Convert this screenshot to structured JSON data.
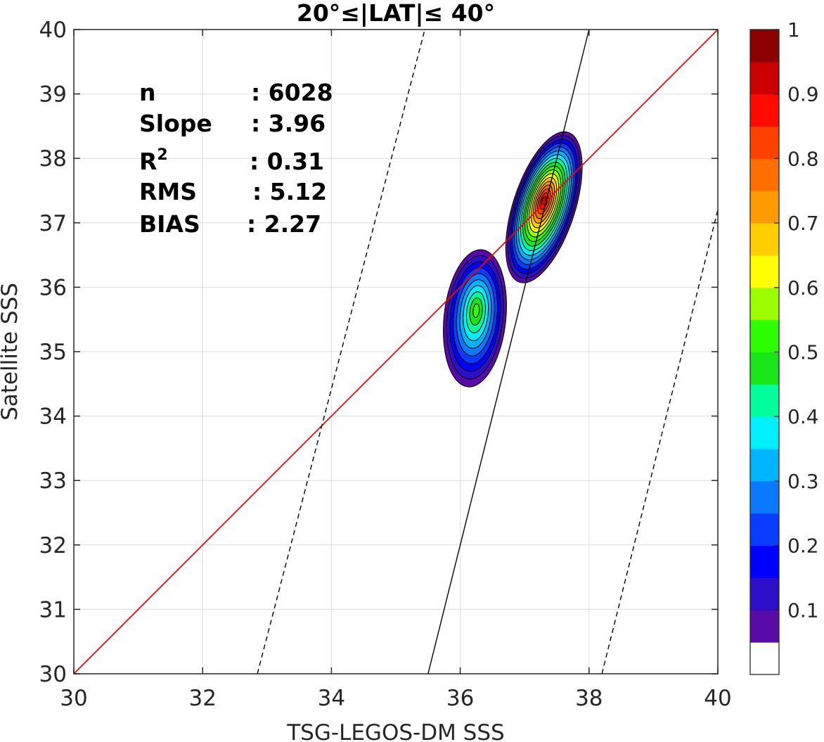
{
  "chart_data": {
    "type": "contour",
    "title": "20°≤|LAT|≤ 40°",
    "xlabel": "TSG-LEGOS-DM SSS",
    "ylabel": "Satellite SSS",
    "xlim": [
      30,
      40
    ],
    "ylim": [
      30,
      40
    ],
    "xticks": [
      "30",
      "32",
      "34",
      "36",
      "38",
      "40"
    ],
    "yticks": [
      "30",
      "31",
      "32",
      "33",
      "34",
      "35",
      "36",
      "37",
      "38",
      "39",
      "40"
    ],
    "grid": true,
    "stats": [
      {
        "key": "n",
        "value": ": 6028"
      },
      {
        "key": "Slope",
        "value": ": 3.96"
      },
      {
        "key": "R",
        "sup": "2",
        "value": ": 0.31"
      },
      {
        "key": "RMS",
        "value": ": 5.12"
      },
      {
        "key": "BIAS",
        "value": ": 2.27"
      }
    ],
    "density_peaks": [
      {
        "x": 37.3,
        "y": 37.35,
        "max": 0.95
      },
      {
        "x": 36.25,
        "y": 35.65,
        "max": 0.55
      }
    ],
    "one_to_one_line": {
      "slope": 1,
      "intercept": 0,
      "color": "#ff0000"
    },
    "regression_line": {
      "points": [
        [
          35.5,
          30.0
        ],
        [
          38.0,
          40.0
        ]
      ],
      "color": "#000000"
    },
    "rms_envelope_lines": {
      "points_low": [
        [
          38.2,
          30.0
        ],
        [
          40.0,
          37.2
        ]
      ],
      "points_high": [
        [
          32.85,
          30.0
        ],
        [
          35.45,
          40.0
        ]
      ],
      "style": "dashed"
    },
    "colorbar": {
      "tick_labels": [
        "0.1",
        "0.2",
        "0.3",
        "0.4",
        "0.5",
        "0.6",
        "0.7",
        "0.8",
        "0.9",
        "1"
      ],
      "tick_values": [
        0.1,
        0.2,
        0.3,
        0.4,
        0.5,
        0.6,
        0.7,
        0.8,
        0.9,
        1.0
      ],
      "colors": [
        "#ffffff",
        "#5a0aa6",
        "#2d0fc8",
        "#0000ff",
        "#0a3cff",
        "#0a78ff",
        "#00b4ff",
        "#00f0ff",
        "#00ff9a",
        "#19e619",
        "#2dff00",
        "#9bff00",
        "#ffff00",
        "#ffcd00",
        "#ff9b00",
        "#ff6e00",
        "#ff4100",
        "#ff0a00",
        "#cd0000",
        "#8c0000"
      ]
    }
  }
}
